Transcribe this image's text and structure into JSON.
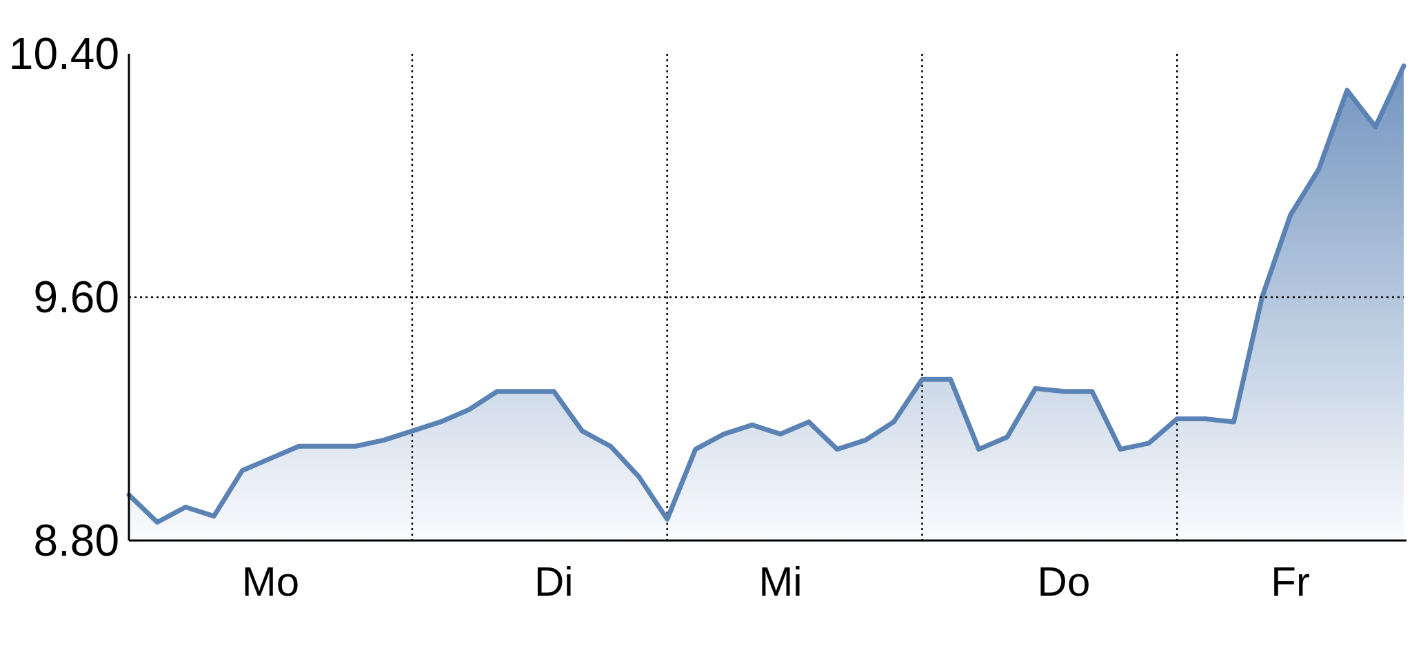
{
  "chart_data": {
    "type": "area",
    "color": "#5a82b4",
    "categories": [
      null,
      null,
      null,
      null,
      null,
      "Mo",
      null,
      null,
      null,
      null,
      null,
      null,
      null,
      null,
      null,
      "Di",
      null,
      null,
      null,
      null,
      null,
      null,
      null,
      "Mi",
      null,
      null,
      null,
      null,
      null,
      null,
      null,
      null,
      null,
      "Do",
      null,
      null,
      null,
      null,
      null,
      null,
      null,
      "Fr",
      null,
      null,
      null,
      null
    ],
    "values": [
      8.95,
      8.86,
      8.91,
      8.88,
      9.03,
      9.07,
      9.11,
      9.11,
      9.11,
      9.13,
      9.16,
      9.19,
      9.23,
      9.29,
      9.29,
      9.29,
      9.16,
      9.11,
      9.01,
      8.87,
      9.1,
      9.15,
      9.18,
      9.15,
      9.19,
      9.1,
      9.13,
      9.19,
      9.33,
      9.33,
      9.1,
      9.14,
      9.3,
      9.29,
      9.29,
      9.1,
      9.12,
      9.2,
      9.2,
      9.19,
      9.6,
      9.87,
      10.02,
      10.28,
      10.16,
      10.36
    ],
    "ylim": [
      8.8,
      10.4
    ],
    "yticks": [
      {
        "value": 8.8,
        "label": "8.80"
      },
      {
        "value": 9.6,
        "label": "9.60"
      },
      {
        "value": 10.4,
        "label": "10.40"
      }
    ],
    "ref_lines": [
      {
        "axis": "y",
        "value": 9.6,
        "color": "#000000",
        "line_style": "dotted"
      }
    ],
    "grid": "x",
    "marker": "none",
    "line_style": "solid"
  }
}
